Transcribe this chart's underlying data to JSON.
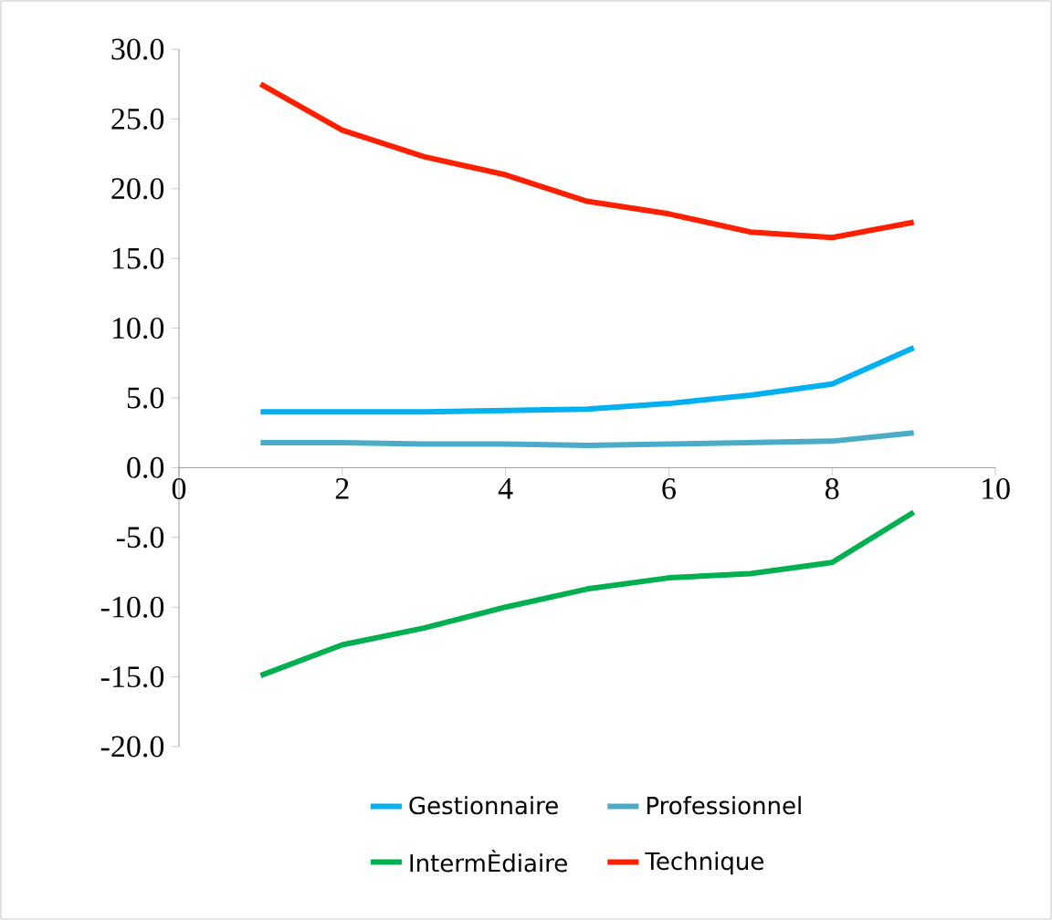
{
  "chart_data": {
    "type": "line",
    "x": [
      1,
      2,
      3,
      4,
      5,
      6,
      7,
      8,
      9
    ],
    "series": [
      {
        "name": "Gestionnaire",
        "color": "#00b0f0",
        "values": [
          4.0,
          4.0,
          4.0,
          4.1,
          4.2,
          4.6,
          5.2,
          6.0,
          8.6
        ]
      },
      {
        "name": "Professionnel",
        "color": "#4bacc6",
        "values": [
          1.8,
          1.8,
          1.7,
          1.7,
          1.6,
          1.7,
          1.8,
          1.9,
          2.5
        ]
      },
      {
        "name": "IntermÈdiaire",
        "color": "#00b050",
        "values": [
          -14.9,
          -12.7,
          -11.5,
          -10.0,
          -8.7,
          -7.9,
          -7.6,
          -6.8,
          -3.2
        ]
      },
      {
        "name": "Technique",
        "color": "#ff2000",
        "values": [
          27.5,
          24.2,
          22.3,
          21.0,
          19.1,
          18.2,
          16.9,
          16.5,
          17.6
        ]
      }
    ],
    "xlim": [
      0,
      10
    ],
    "xticks": [
      0,
      2,
      4,
      6,
      8,
      10
    ],
    "ylim": [
      -20,
      30
    ],
    "yticks": [
      {
        "value": -20,
        "label": "-20.0"
      },
      {
        "value": -15,
        "label": "-15.0"
      },
      {
        "value": -10,
        "label": "-10.0"
      },
      {
        "value": -5,
        "label": "-5.0"
      },
      {
        "value": 0,
        "label": "0.0"
      },
      {
        "value": 5,
        "label": "5.0"
      },
      {
        "value": 10,
        "label": "10.0"
      },
      {
        "value": 15,
        "label": "15.0"
      },
      {
        "value": 20,
        "label": "20.0"
      },
      {
        "value": 25,
        "label": "25.0"
      },
      {
        "value": 30,
        "label": "30.0"
      }
    ],
    "legend": "bottom",
    "grid": false,
    "marker": "none",
    "line_style": "solid"
  }
}
